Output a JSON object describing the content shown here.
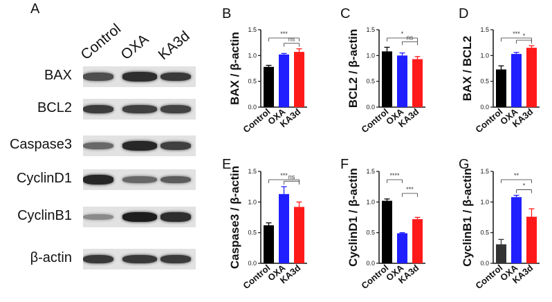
{
  "figure": {
    "panel_letters": [
      "A",
      "B",
      "C",
      "D",
      "E",
      "F",
      "G"
    ]
  },
  "blot": {
    "lanes": [
      "Control",
      "OXA",
      "KA3d"
    ],
    "rows": [
      {
        "label": "BAX",
        "band_intensity": [
          0.7,
          0.88,
          0.82
        ]
      },
      {
        "label": "BCL2",
        "band_intensity": [
          0.8,
          0.78,
          0.76
        ]
      },
      {
        "label": "Caspase3",
        "band_intensity": [
          0.55,
          0.92,
          0.78
        ]
      },
      {
        "label": "CyclinD1",
        "band_intensity": [
          0.92,
          0.55,
          0.62
        ]
      },
      {
        "label": "CyclinB1",
        "band_intensity": [
          0.35,
          0.98,
          0.88
        ]
      },
      {
        "label": "β-actin",
        "band_intensity": [
          0.82,
          0.82,
          0.8
        ]
      }
    ]
  },
  "colors": {
    "Control": "#000000",
    "OXA": "#1f1fff",
    "KA3d": "#ff1a1a",
    "Control_G": "#333333"
  },
  "chart_data": [
    {
      "panel": "B",
      "type": "bar",
      "ylabel": "BAX / β-actin",
      "categories": [
        "Control",
        "OXA",
        "KA3d"
      ],
      "values": [
        0.78,
        1.02,
        1.07
      ],
      "errors": [
        0.03,
        0.02,
        0.06
      ],
      "ylim": [
        0,
        1.5
      ],
      "yticks": [
        "0.0",
        "0.5",
        "1.0",
        "1.5"
      ],
      "sig": [
        {
          "from": 0,
          "to": 2,
          "label": "***"
        },
        {
          "from": 1,
          "to": 2,
          "label": "ns"
        }
      ]
    },
    {
      "panel": "C",
      "type": "bar",
      "ylabel": "BCL2 / β-actin",
      "categories": [
        "Control",
        "OXA",
        "KA3d"
      ],
      "values": [
        1.08,
        1.0,
        0.93
      ],
      "errors": [
        0.08,
        0.05,
        0.05
      ],
      "ylim": [
        0,
        1.5
      ],
      "yticks": [
        "0.0",
        "0.5",
        "1.0",
        "1.5"
      ],
      "sig": [
        {
          "from": 0,
          "to": 2,
          "label": "*"
        },
        {
          "from": 1,
          "to": 2,
          "label": "ns"
        }
      ]
    },
    {
      "panel": "D",
      "type": "bar",
      "ylabel": "BAX / BCL2",
      "categories": [
        "Control",
        "OXA",
        "KA3d"
      ],
      "values": [
        0.73,
        1.03,
        1.15
      ],
      "errors": [
        0.07,
        0.03,
        0.04
      ],
      "ylim": [
        0,
        1.5
      ],
      "yticks": [
        "0.0",
        "0.5",
        "1.0",
        "1.5"
      ],
      "sig": [
        {
          "from": 0,
          "to": 2,
          "label": "***"
        },
        {
          "from": 1,
          "to": 2,
          "label": "*"
        }
      ]
    },
    {
      "panel": "E",
      "type": "bar",
      "ylabel": "Caspase3 / β-actin",
      "categories": [
        "Control",
        "OXA",
        "KA3d"
      ],
      "values": [
        0.62,
        1.13,
        0.92
      ],
      "errors": [
        0.04,
        0.12,
        0.08
      ],
      "ylim": [
        0,
        1.5
      ],
      "yticks": [
        "0.0",
        "0.5",
        "1.0",
        "1.5"
      ],
      "sig": [
        {
          "from": 0,
          "to": 2,
          "label": "***"
        },
        {
          "from": 1,
          "to": 2,
          "label": "ns"
        }
      ]
    },
    {
      "panel": "F",
      "type": "bar",
      "ylabel": "CyclinD1 / β-actin",
      "categories": [
        "Control",
        "OXA",
        "KA3d"
      ],
      "values": [
        1.02,
        0.49,
        0.72
      ],
      "errors": [
        0.03,
        0.01,
        0.03
      ],
      "ylim": [
        0,
        1.5
      ],
      "yticks": [
        "0.0",
        "0.5",
        "1.0",
        "1.5"
      ],
      "sig": [
        {
          "from": 0,
          "to": 1,
          "label": "****"
        },
        {
          "from": 1,
          "to": 2,
          "label": "***"
        }
      ]
    },
    {
      "panel": "G",
      "type": "bar",
      "ylabel": "CyclinB1 / β-actin",
      "categories": [
        "Control",
        "OXA",
        "KA3d"
      ],
      "values": [
        0.31,
        1.08,
        0.76
      ],
      "errors": [
        0.08,
        0.03,
        0.13
      ],
      "ylim": [
        0,
        1.5
      ],
      "yticks": [
        "0.0",
        "0.5",
        "1.0",
        "1.5"
      ],
      "sig": [
        {
          "from": 0,
          "to": 2,
          "label": "**"
        },
        {
          "from": 1,
          "to": 2,
          "label": "*"
        }
      ]
    }
  ]
}
